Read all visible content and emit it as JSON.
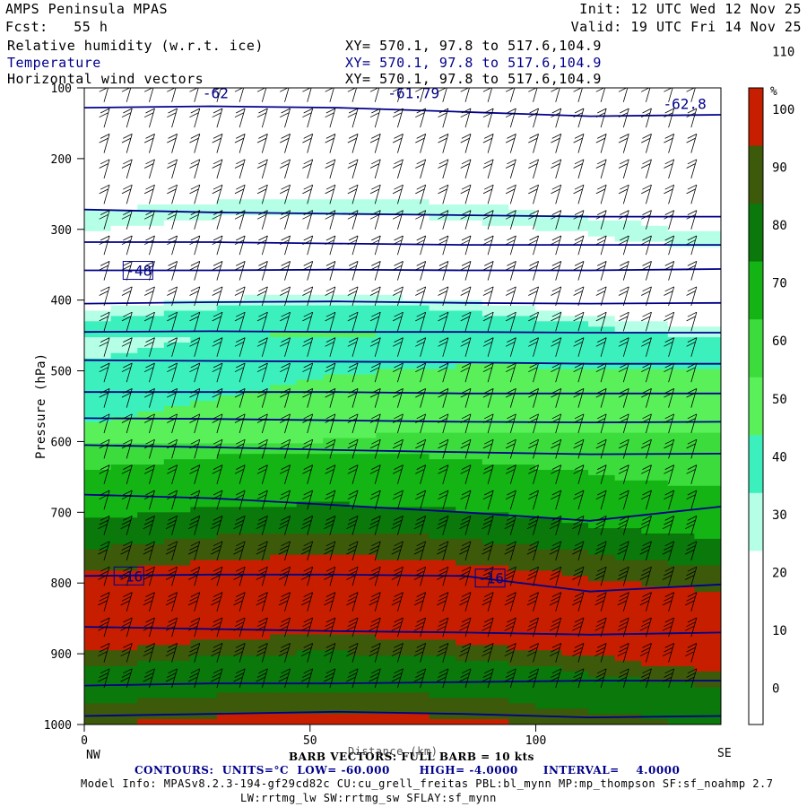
{
  "header": {
    "model": "AMPS Peninsula MPAS",
    "forecast": "Fcst:   55 h",
    "init": "Init: 12 UTC Wed 12 Nov 25",
    "valid": "Valid: 19 UTC Fri 14 Nov 25",
    "field1": "Relative humidity (w.r.t. ice)",
    "field2": "Temperature",
    "field3": "Horizontal wind vectors",
    "xy1": "XY= 570.1, 97.8 to 517.6,104.9",
    "xy2": "XY= 570.1, 97.8 to 517.6,104.9",
    "xy3": "XY= 570.1, 97.8 to 517.6,104.9"
  },
  "footer": {
    "barb": "BARB VECTORS: FULL BARB = 10 kts",
    "distance": "Distance (km)",
    "contours": "CONTOURS:  UNITS=°C  LOW= -60.000       HIGH= -4.0000      INTERVAL=    4.0000",
    "model_info": "Model Info: MPASv8.2.3-194-gf29cd82c CU:cu_grell_freitas PBL:bl_mynn MP:mp_thompson SF:sf_noahmp 2.7",
    "model_info2": "LW:rrtmg_lw SW:rrtmg_sw SFLAY:sf_mynn"
  },
  "colors": {
    "contour": "#00008b",
    "barb": "#000000",
    "rh_bands": [
      "#ffffff",
      "#ffffff",
      "#ffffff",
      "#b4ffe6",
      "#3cf0be",
      "#5af05a",
      "#3cdc3c",
      "#14b414",
      "#0a780a",
      "#3c5a0a",
      "#c81e00"
    ]
  },
  "chart_data": {
    "type": "heatmap",
    "title": "Relative humidity (w.r.t. ice), Temperature, Horizontal wind vectors",
    "xlabel": "Distance (km)",
    "ylabel": "Pressure (hPa)",
    "xlim": [
      0,
      141
    ],
    "ylim": [
      1000,
      100
    ],
    "x_ticks": [
      0,
      50,
      100
    ],
    "y_ticks": [
      100,
      200,
      300,
      400,
      500,
      600,
      700,
      800,
      900,
      1000
    ],
    "x_end_labels": [
      "NW",
      "SE"
    ],
    "colorbar": {
      "unit": "%",
      "levels": [
        0,
        10,
        20,
        30,
        40,
        50,
        60,
        70,
        80,
        90,
        100,
        110
      ],
      "labels": [
        "0",
        "10",
        "20",
        "30",
        "40",
        "50",
        "60",
        "70",
        "80",
        "90",
        "100",
        "110"
      ]
    },
    "rh_profile": [
      {
        "p": 100,
        "rh": 5
      },
      {
        "p": 250,
        "rh": 15
      },
      {
        "p": 280,
        "rh": 35
      },
      {
        "p": 330,
        "rh": 20
      },
      {
        "p": 390,
        "rh": 15
      },
      {
        "p": 430,
        "rh": 45
      },
      {
        "p": 500,
        "rh": 55
      },
      {
        "p": 570,
        "rh": 62
      },
      {
        "p": 650,
        "rh": 72
      },
      {
        "p": 720,
        "rh": 82
      },
      {
        "p": 780,
        "rh": 100
      },
      {
        "p": 830,
        "rh": 112
      },
      {
        "p": 880,
        "rh": 105
      },
      {
        "p": 940,
        "rh": 80
      },
      {
        "p": 1000,
        "rh": 100
      }
    ],
    "temperature_contours": [
      {
        "label": "-62",
        "p": [
          128,
          126,
          128,
          134,
          140,
          138
        ]
      },
      {
        "label": "-61.79",
        "p": [
          128,
          126,
          128,
          134,
          140,
          138
        ]
      },
      {
        "label": "-62.8",
        "p": [
          128,
          126,
          128,
          134,
          140,
          138
        ]
      },
      {
        "label": "",
        "p": [
          272,
          276,
          278,
          280,
          282,
          282
        ]
      },
      {
        "label": "",
        "p": [
          318,
          318,
          320,
          322,
          322,
          322
        ]
      },
      {
        "label": "-48",
        "p": [
          358,
          358,
          357,
          358,
          358,
          356
        ]
      },
      {
        "label": "",
        "p": [
          405,
          403,
          402,
          404,
          405,
          404
        ]
      },
      {
        "label": "",
        "p": [
          445,
          444,
          445,
          445,
          446,
          446
        ]
      },
      {
        "label": "",
        "p": [
          485,
          486,
          487,
          488,
          490,
          490
        ]
      },
      {
        "label": "",
        "p": [
          530,
          530,
          530,
          532,
          532,
          532
        ]
      },
      {
        "label": "",
        "p": [
          567,
          568,
          570,
          572,
          573,
          572
        ]
      },
      {
        "label": "",
        "p": [
          605,
          608,
          612,
          615,
          618,
          617
        ]
      },
      {
        "label": "",
        "p": [
          675,
          680,
          690,
          700,
          712,
          692
        ]
      },
      {
        "label": "-16",
        "p": [
          790,
          788,
          788,
          790,
          812,
          802
        ]
      },
      {
        "label": "-16",
        "p": [
          790,
          788,
          788,
          790,
          812,
          802
        ]
      },
      {
        "label": "",
        "p": [
          862,
          865,
          868,
          870,
          873,
          870
        ]
      },
      {
        "label": "",
        "p": [
          945,
          942,
          942,
          940,
          938,
          938
        ]
      },
      {
        "label": "",
        "p": [
          988,
          985,
          982,
          985,
          990,
          988
        ]
      }
    ],
    "temperature_labels": [
      {
        "text": "-62",
        "x": 26,
        "p": 107
      },
      {
        "text": "-61.79",
        "x": 67,
        "p": 107
      },
      {
        "text": "-62.8",
        "x": 128,
        "p": 122
      },
      {
        "text": "-48",
        "x": 9,
        "p": 358
      },
      {
        "text": "-16",
        "x": 7,
        "p": 790
      },
      {
        "text": "-16",
        "x": 87,
        "p": 793
      }
    ],
    "contour_x": [
      0,
      28,
      56,
      84,
      112,
      141
    ]
  }
}
